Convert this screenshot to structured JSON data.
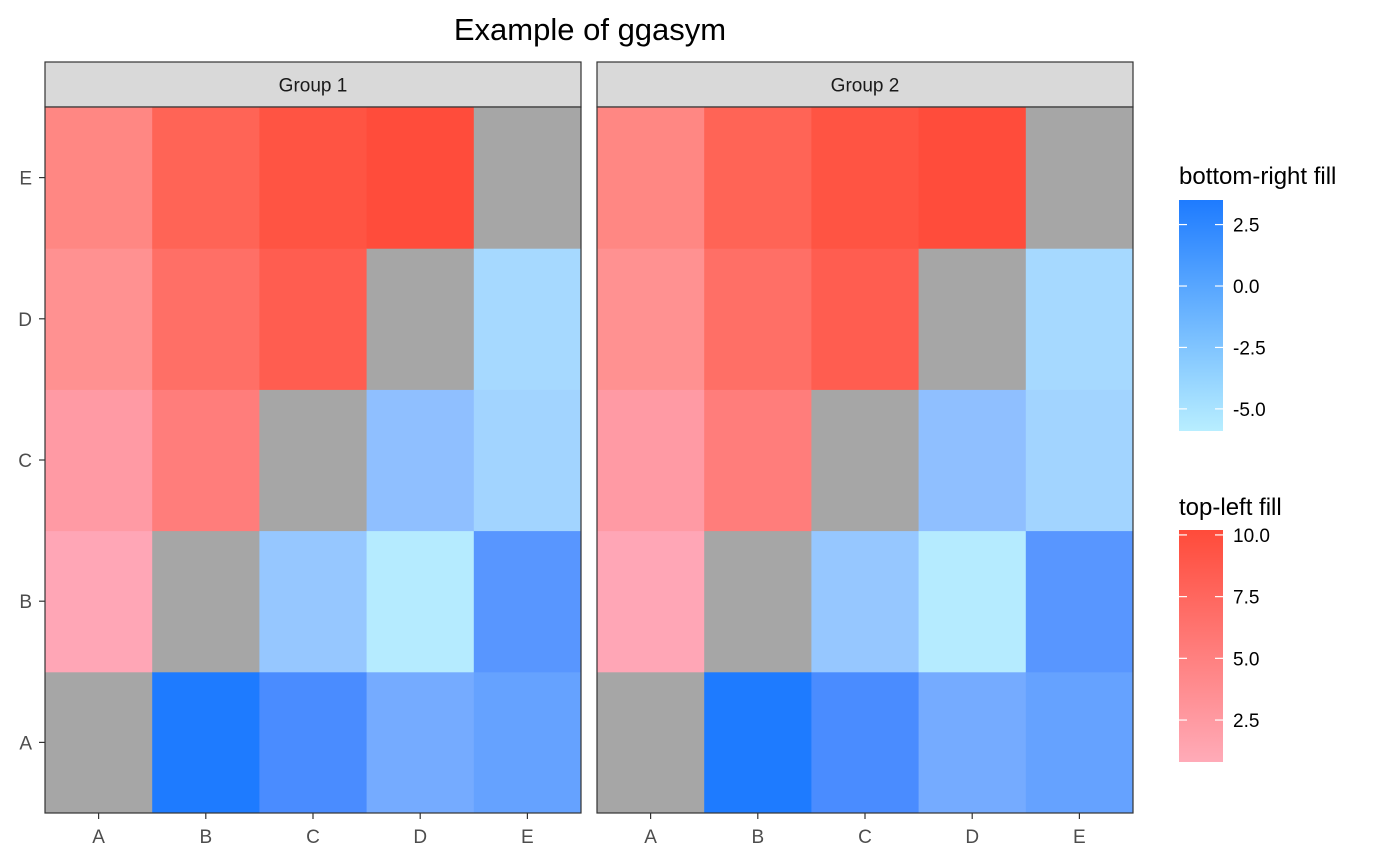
{
  "chart_data": {
    "type": "heatmap",
    "title": "Example of ggasym",
    "xlabel": "",
    "ylabel": "",
    "x_categories": [
      "A",
      "B",
      "C",
      "D",
      "E"
    ],
    "y_categories": [
      "A",
      "B",
      "C",
      "D",
      "E"
    ],
    "facets": [
      "Group 1",
      "Group 2"
    ],
    "diagonal_color": "#a6a6a6",
    "cells": [
      {
        "x": "A",
        "y": "A",
        "fill": "#a6a6a6"
      },
      {
        "x": "B",
        "y": "A",
        "fill": "#1e7bff"
      },
      {
        "x": "C",
        "y": "A",
        "fill": "#4a8cff"
      },
      {
        "x": "D",
        "y": "A",
        "fill": "#75abff"
      },
      {
        "x": "E",
        "y": "A",
        "fill": "#65a2ff"
      },
      {
        "x": "A",
        "y": "B",
        "fill": "#ffa6b6"
      },
      {
        "x": "B",
        "y": "B",
        "fill": "#a6a6a6"
      },
      {
        "x": "C",
        "y": "B",
        "fill": "#96c7ff"
      },
      {
        "x": "D",
        "y": "B",
        "fill": "#b5ebff"
      },
      {
        "x": "E",
        "y": "B",
        "fill": "#5896ff"
      },
      {
        "x": "A",
        "y": "C",
        "fill": "#ff9aa4"
      },
      {
        "x": "B",
        "y": "C",
        "fill": "#ff7d7b"
      },
      {
        "x": "C",
        "y": "C",
        "fill": "#a6a6a6"
      },
      {
        "x": "D",
        "y": "C",
        "fill": "#8fbfff"
      },
      {
        "x": "E",
        "y": "C",
        "fill": "#a2d4ff"
      },
      {
        "x": "A",
        "y": "D",
        "fill": "#ff9191"
      },
      {
        "x": "B",
        "y": "D",
        "fill": "#ff6f66"
      },
      {
        "x": "C",
        "y": "D",
        "fill": "#ff5d50"
      },
      {
        "x": "D",
        "y": "D",
        "fill": "#a6a6a6"
      },
      {
        "x": "E",
        "y": "D",
        "fill": "#a6d9ff"
      },
      {
        "x": "A",
        "y": "E",
        "fill": "#ff8783"
      },
      {
        "x": "B",
        "y": "E",
        "fill": "#ff6456"
      },
      {
        "x": "C",
        "y": "E",
        "fill": "#ff5443"
      },
      {
        "x": "D",
        "y": "E",
        "fill": "#ff4c3b"
      },
      {
        "x": "E",
        "y": "E",
        "fill": "#a6a6a6"
      }
    ],
    "legends": [
      {
        "title": "bottom-right fill",
        "colors": [
          "#b8eeff",
          "#1e7bff"
        ],
        "range": [
          -5.9,
          3.5
        ],
        "ticks": [
          {
            "value": 2.5,
            "label": "2.5"
          },
          {
            "value": 0.0,
            "label": "0.0"
          },
          {
            "value": -2.5,
            "label": "-2.5"
          },
          {
            "value": -5.0,
            "label": "-5.0"
          }
        ]
      },
      {
        "title": "top-left fill",
        "colors": [
          "#ffabb8",
          "#ff4b3a"
        ],
        "range": [
          0.8,
          10.2
        ],
        "ticks": [
          {
            "value": 10.0,
            "label": "10.0"
          },
          {
            "value": 7.5,
            "label": "7.5"
          },
          {
            "value": 5.0,
            "label": "5.0"
          },
          {
            "value": 2.5,
            "label": "2.5"
          }
        ]
      }
    ],
    "legend_position": "right",
    "grid": false
  }
}
